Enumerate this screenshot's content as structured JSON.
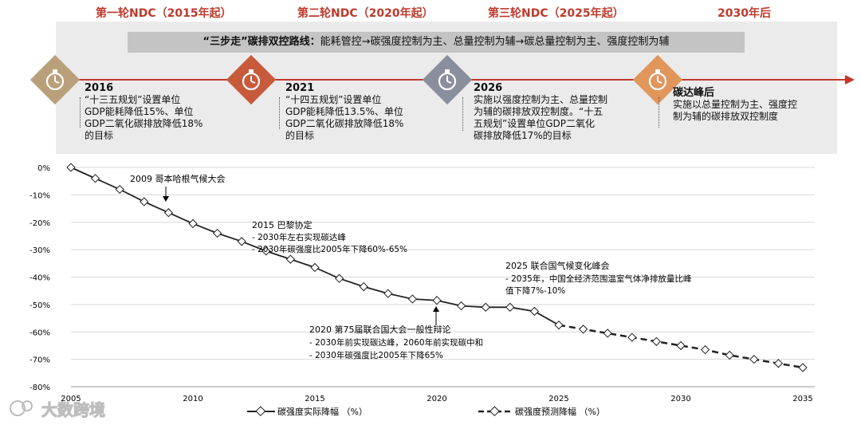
{
  "header": {
    "eras": [
      "第一轮NDC（2015年起）",
      "第二轮NDC（2020年起）",
      "第三轮NDC（2025年起）",
      "2030年后"
    ],
    "strategy_bold": "“三步走”碳排双控路线：",
    "strategy_rest": "能耗管控→碳强度控制为主、总量控制为辅→碳总量控制为主、强度控制为辅"
  },
  "milestones": [
    {
      "year": "2016",
      "desc": "“十三五规划”设置单位\nGDP能耗降低15%、单位\nGDP二氧化碳排放降低18%\n的目标",
      "color": "#b9a07a"
    },
    {
      "year": "2021",
      "desc": "“十四五规划”设置单位\nGDP能耗降低13.5%、单位\nGDP二氧化碳排放降低18%\n的目标",
      "color": "#c85a3c"
    },
    {
      "year": "2026",
      "desc": "实施以强度控制为主、总量控制\n为辅的碳排放双控制度。“十五\n五规划”设置单位GDP二氧化\n碳排放降低17%的目标",
      "color": "#8a8f9e"
    },
    {
      "year": "碳达峰后",
      "desc": "实施以总量控制为主、强度控\n制为辅的碳排放双控制度",
      "color": "#e1965c"
    }
  ],
  "annotations": [
    {
      "title": "2009 哥本哈根气候大会",
      "lines": []
    },
    {
      "title": "2015 巴黎协定",
      "lines": [
        "- 2030年左右实现碳达峰",
        "- 2030年碳强度比2005年下降60%-65%"
      ]
    },
    {
      "title": "2025 联合国气候变化峰会",
      "lines": [
        "- 2035年，中国全经济范围温室气体净排放量比峰",
        "值下降7%-10%"
      ]
    },
    {
      "title": "2020 第75届联合国大会一般性辩论",
      "lines": [
        "- 2030年前实现碳达峰，2060年前实现碳中和",
        "- 2030年碳强度比2005年下降65%"
      ]
    }
  ],
  "watermark": "大数跨境",
  "chart_data": {
    "type": "line",
    "xlim": [
      2005,
      2035
    ],
    "ylim": [
      -80,
      0
    ],
    "x_ticks": [
      "2005",
      "2010",
      "2015",
      "2020",
      "2025",
      "2030",
      "2035"
    ],
    "y_ticks": [
      "0%",
      "-10%",
      "-20%",
      "-30%",
      "-40%",
      "-50%",
      "-60%",
      "-70%",
      "-80%"
    ],
    "grid": "horizontal",
    "legend_position": "bottom",
    "series": [
      {
        "name": "碳强度实际降幅 （%）",
        "style": "solid",
        "x": [
          2005,
          2006,
          2007,
          2008,
          2009,
          2010,
          2011,
          2012,
          2013,
          2014,
          2015,
          2016,
          2017,
          2018,
          2019,
          2020,
          2021,
          2022,
          2023,
          2024,
          2025
        ],
        "y": [
          0,
          -4,
          -8,
          -12.5,
          -16.5,
          -20.5,
          -24,
          -27,
          -30.5,
          -33.5,
          -36.5,
          -40.5,
          -43.5,
          -46,
          -48,
          -48.5,
          -50.5,
          -51,
          -51,
          -52.5,
          -57.5
        ]
      },
      {
        "name": "碳强度预测降幅 （%）",
        "style": "dashed",
        "x": [
          2025,
          2026,
          2027,
          2028,
          2029,
          2030,
          2031,
          2032,
          2033,
          2034,
          2035
        ],
        "y": [
          -57.5,
          -59,
          -60.5,
          -62,
          -63.5,
          -65,
          -66.5,
          -68.5,
          -70,
          -71.5,
          -73
        ]
      }
    ]
  }
}
